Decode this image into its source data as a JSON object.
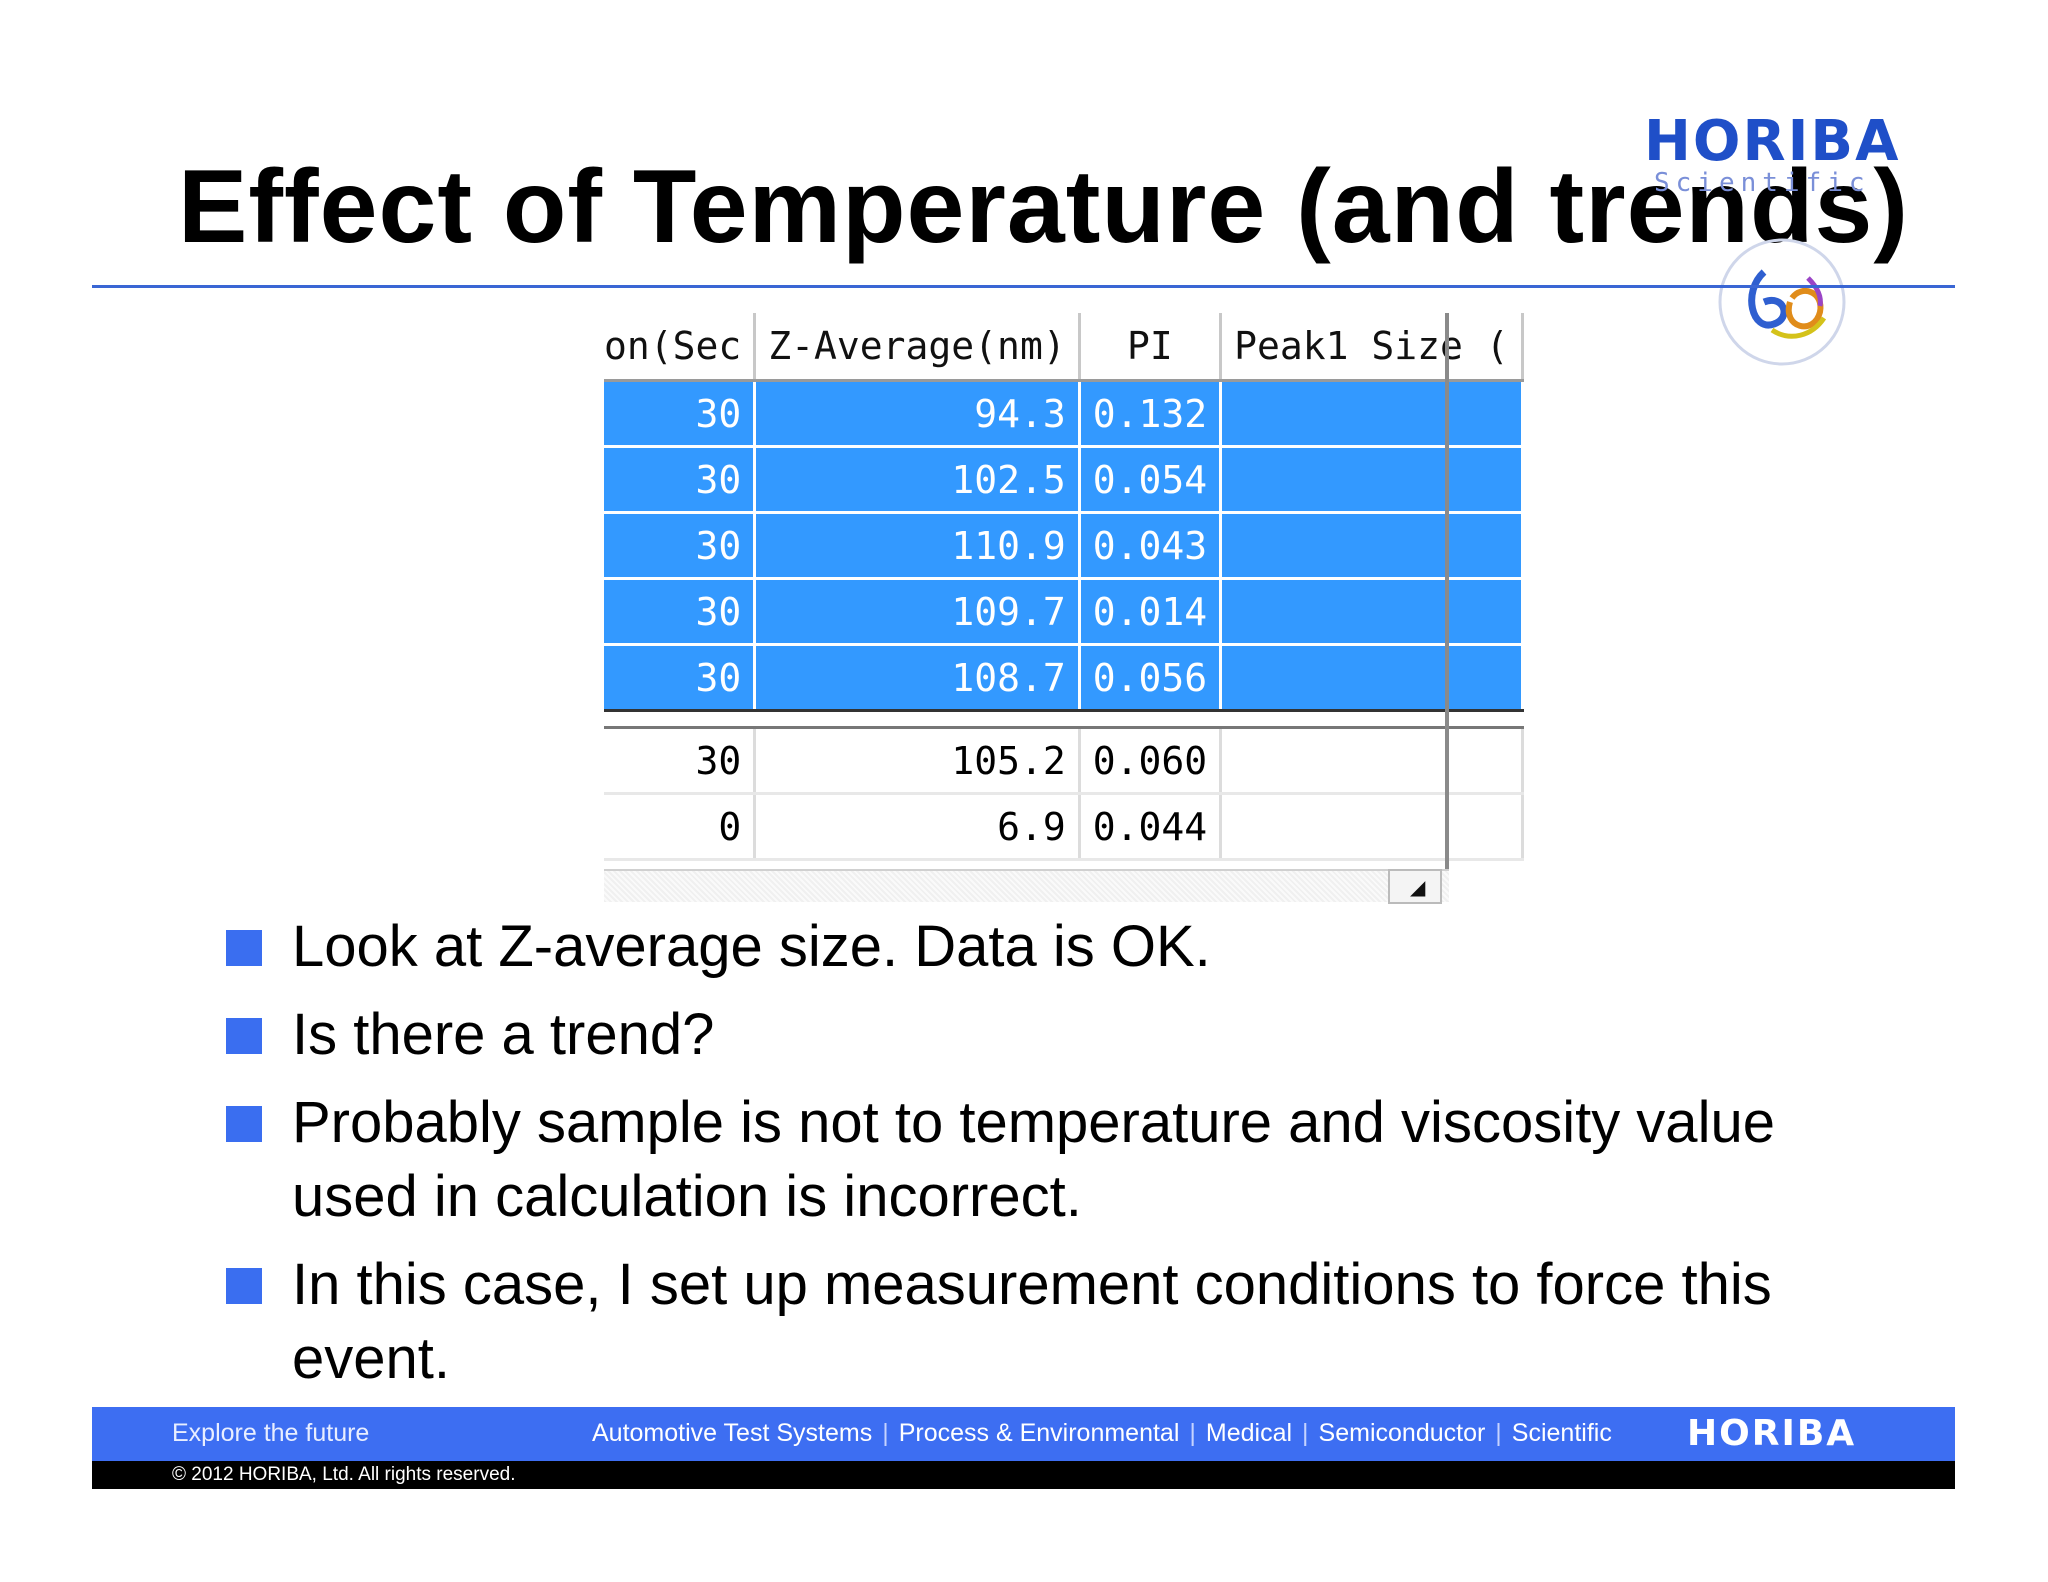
{
  "slide": {
    "title": "Effect of Temperature (and trends)",
    "brand": {
      "wordmark": "HORIBA",
      "sub": "Scientific"
    }
  },
  "table": {
    "headers": [
      "on(Sec",
      "Z-Average(nm)",
      "PI",
      "Peak1 Size ("
    ],
    "selected_rows": [
      [
        "30",
        "94.3",
        "0.132",
        ""
      ],
      [
        "30",
        "102.5",
        "0.054",
        ""
      ],
      [
        "30",
        "110.9",
        "0.043",
        ""
      ],
      [
        "30",
        "109.7",
        "0.014",
        ""
      ],
      [
        "30",
        "108.7",
        "0.056",
        ""
      ]
    ],
    "other_rows": [
      [
        "30",
        "105.2",
        "0.060",
        ""
      ],
      [
        "0",
        "6.9",
        "0.044",
        ""
      ]
    ]
  },
  "bullets": [
    "Look at Z-average size. Data is OK.",
    "Is there a trend?",
    "Probably sample is not to temperature and viscosity value used in calculation is incorrect.",
    "In this case, I set up measurement conditions to force this event."
  ],
  "footer": {
    "tagline": "Explore the future",
    "divisions": [
      "Automotive Test Systems",
      "Process & Environmental",
      "Medical",
      "Semiconductor",
      "Scientific"
    ],
    "logo": "HORIBA",
    "copyright": "© 2012 HORIBA, Ltd. All rights reserved."
  },
  "colors": {
    "accent": "#3a6ef0",
    "selection": "#3399ff",
    "footer_bar": "#3d6ef2"
  }
}
